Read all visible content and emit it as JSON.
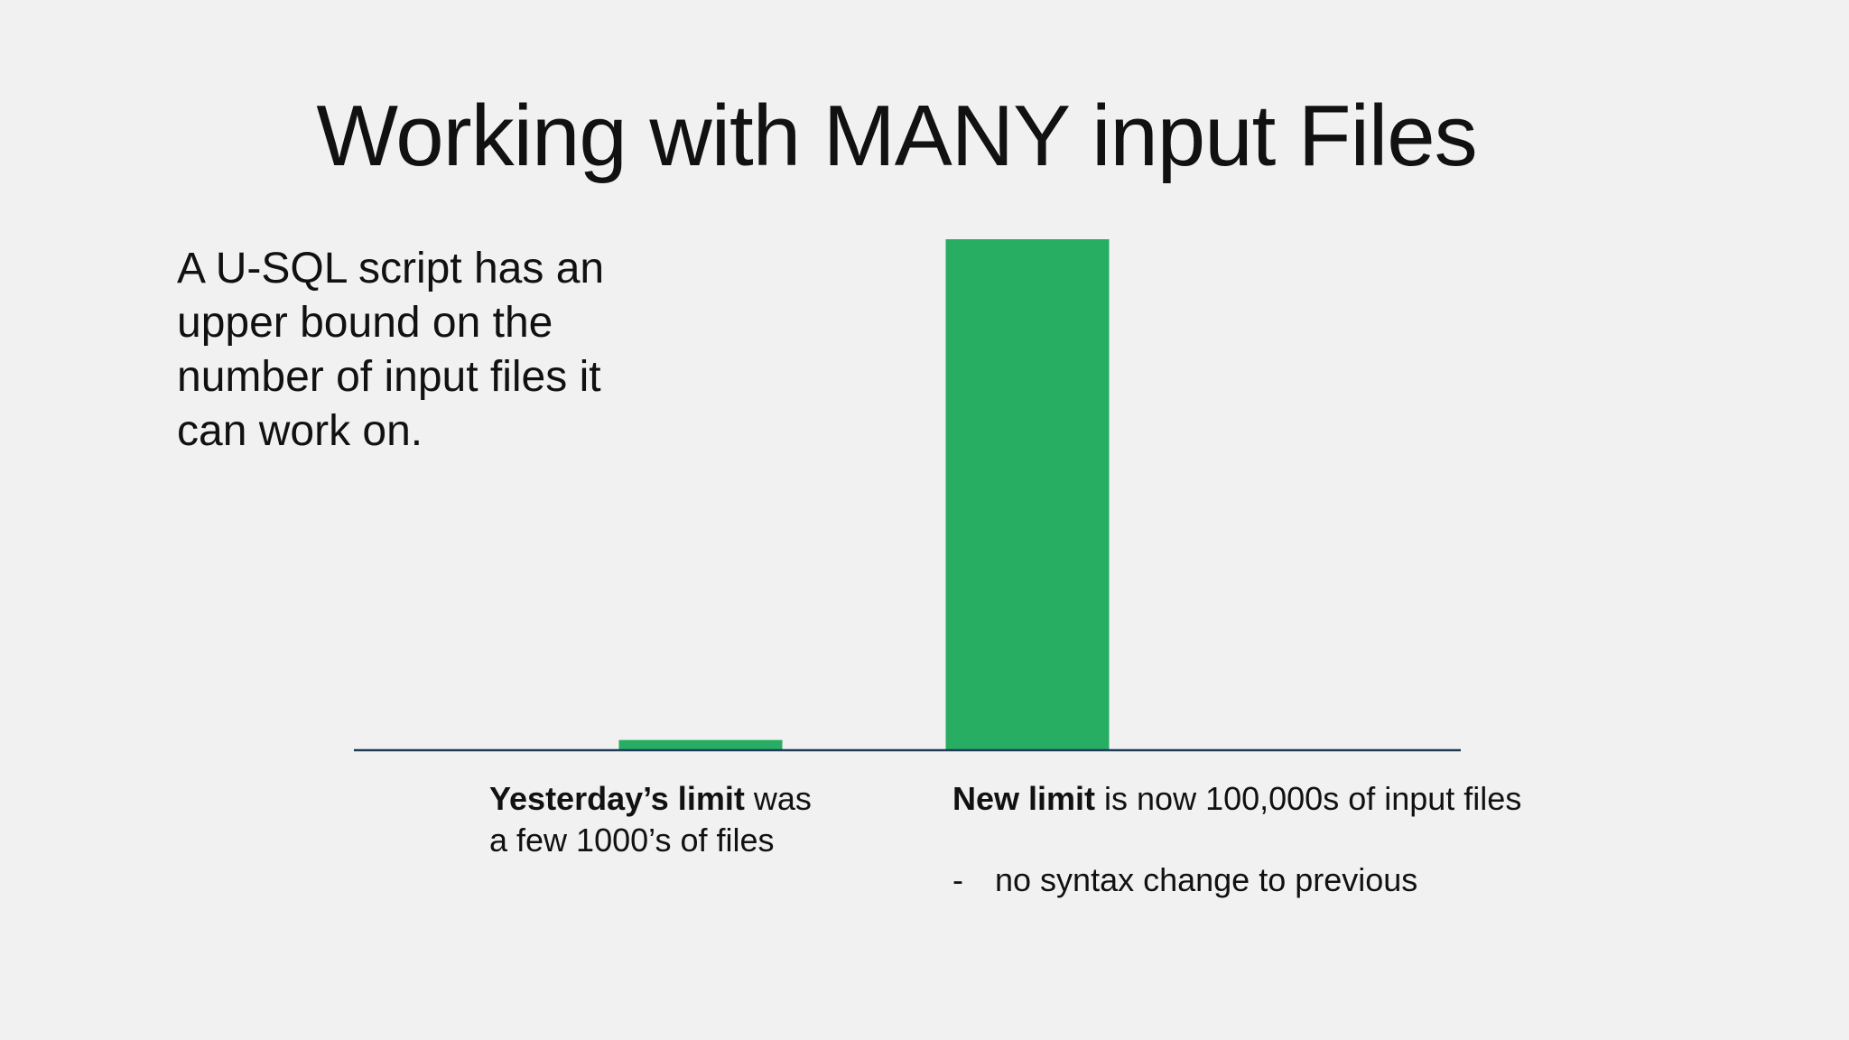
{
  "slide": {
    "title": "Working with MANY input Files",
    "intro": "A U-SQL script has an upper bound on the number of input files it can work on.",
    "captions": {
      "yesterday_bold": "Yesterday’s limit",
      "yesterday_rest": " was",
      "yesterday_line2": "a few 1000’s of files",
      "new_bold": "New limit",
      "new_rest": " is now 100,000s of input files",
      "note_dash": "-",
      "note_text": "no syntax change to previous"
    }
  },
  "colors": {
    "background": "#f2f1f2",
    "bar": "#27ae63",
    "axis": "#1f3b57"
  },
  "chart_data": {
    "type": "bar",
    "categories": [
      "",
      ""
    ],
    "values": [
      2,
      100
    ],
    "value_note": "relative heights read off the bars; no printed axis scale",
    "ylim": [
      0,
      100
    ],
    "grid": false,
    "legend": "none",
    "title": "",
    "xlabel": "",
    "ylabel": ""
  }
}
